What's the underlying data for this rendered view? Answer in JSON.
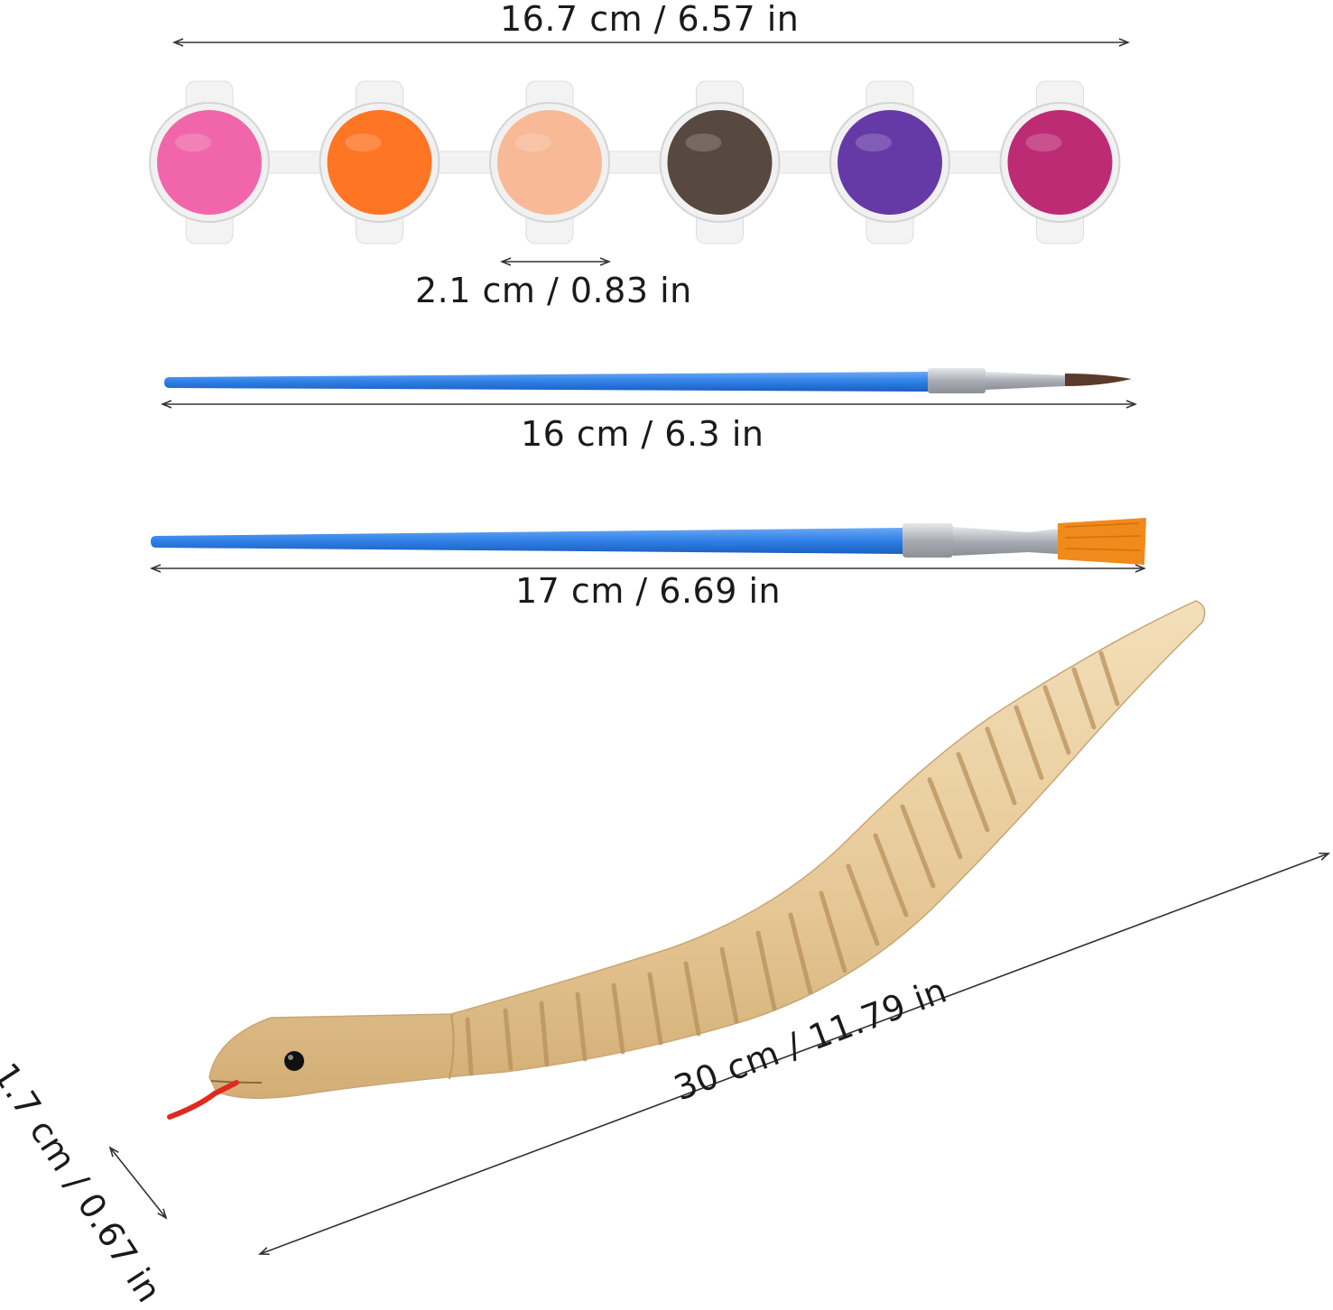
{
  "dimensions": {
    "paint_strip_width": "16.7 cm / 6.57 in",
    "paint_cup_diameter": "2.1 cm / 0.83 in",
    "fine_brush_length": "16 cm / 6.3 in",
    "flat_brush_length": "17 cm / 6.69 in",
    "snake_length": "30 cm / 11.79 in",
    "snake_width": "1.7 cm / 0.67 in"
  },
  "paint_colors": [
    "#f15aa4",
    "#ff6a12",
    "#f8b48e",
    "#4a3b30",
    "#5a2aa0",
    "#b81a6a"
  ],
  "colors": {
    "brush_handle": "#2f7fe6",
    "brush_ferrule": "#b8bcc2",
    "flat_bristles": "#f08a1a",
    "fine_bristles": "#5a3a2a",
    "wood": "#e9cfa1",
    "wood_groove": "#b8915c",
    "tongue": "#e02a1e",
    "dimension_line": "#333333"
  }
}
